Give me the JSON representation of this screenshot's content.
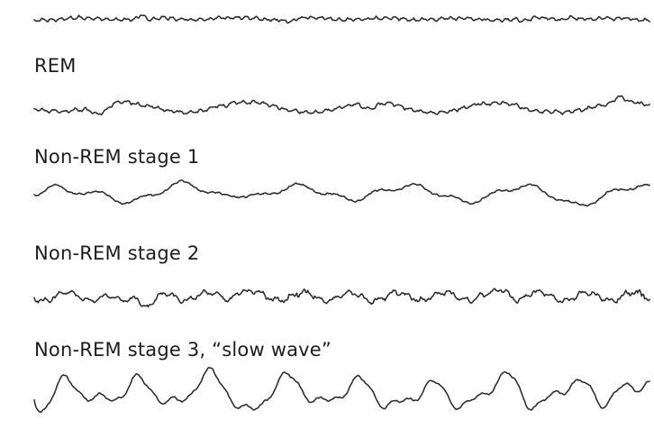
{
  "panels": [
    {
      "key": "awake",
      "label": ""
    },
    {
      "key": "rem",
      "label": "REM"
    },
    {
      "key": "nrem1",
      "label": "Non-REM stage 1"
    },
    {
      "key": "nrem2",
      "label": "Non-REM stage 2"
    },
    {
      "key": "nrem3",
      "label": "Non-REM stage 3, “slow wave”"
    }
  ],
  "colors": {
    "trace": "#2a2a2a",
    "text": "#1d1d1d",
    "background": "#ffffff"
  }
}
